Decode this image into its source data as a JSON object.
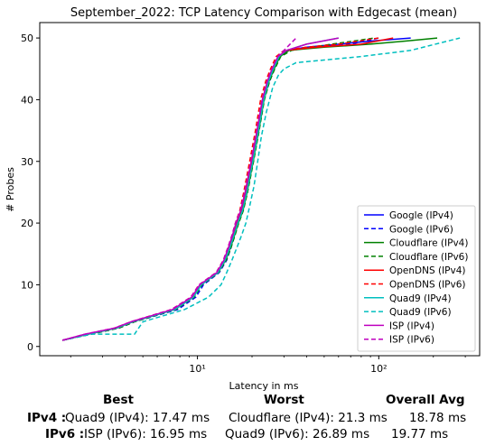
{
  "chart_data": {
    "type": "line",
    "title": "September_2022: TCP Latency Comparison with Edgecast (mean)",
    "xlabel": "Latency in ms",
    "ylabel": "# Probes",
    "xscale": "log",
    "xlim": [
      1.35,
      360
    ],
    "ylim": [
      -1.5,
      52.5
    ],
    "xticks": [
      10,
      100
    ],
    "xtick_labels": [
      "10¹",
      "10²"
    ],
    "yticks": [
      0,
      10,
      20,
      30,
      40,
      50
    ],
    "ytick_labels": [
      "0",
      "10",
      "20",
      "30",
      "40",
      "50"
    ],
    "grid": false,
    "legend_position": "lower right",
    "series": [
      {
        "name": "Google (IPv4)",
        "color": "#0000ff",
        "style": "solid",
        "x": [
          1.8,
          2.5,
          3.6,
          4.4,
          7.5,
          9.5,
          10.5,
          13.0,
          14.2,
          15.0,
          15.8,
          16.5,
          17.5,
          18.5,
          20.0,
          21.5,
          23.0,
          24.5,
          26.0,
          28.0,
          31.0,
          40.0,
          60.0,
          90.0,
          150.0
        ],
        "y": [
          1,
          2,
          3,
          4,
          6,
          8,
          10,
          12,
          14,
          16,
          18,
          20,
          22,
          25,
          30,
          35,
          40,
          43,
          45,
          47,
          48,
          48.5,
          49,
          49.5,
          50
        ]
      },
      {
        "name": "Google (IPv6)",
        "color": "#0000ff",
        "style": "dashed",
        "x": [
          1.8,
          2.6,
          3.7,
          4.5,
          7.8,
          9.8,
          10.8,
          13.2,
          14.5,
          15.3,
          16.0,
          16.8,
          17.8,
          18.8,
          20.2,
          21.8,
          23.3,
          25.0,
          26.5,
          28.5,
          32.0,
          45.0,
          70.0,
          100.0
        ],
        "y": [
          1,
          2,
          3,
          4,
          6,
          8,
          10,
          12,
          14,
          16,
          18,
          20,
          22,
          25,
          30,
          35,
          40,
          43,
          45,
          47,
          48,
          48.5,
          49,
          50
        ]
      },
      {
        "name": "Cloudflare (IPv4)",
        "color": "#008000",
        "style": "solid",
        "x": [
          1.8,
          2.5,
          3.6,
          4.4,
          7.5,
          9.5,
          10.5,
          13.0,
          14.3,
          15.2,
          16.0,
          16.8,
          17.8,
          18.8,
          20.3,
          21.8,
          23.3,
          24.8,
          26.5,
          28.5,
          32.0,
          50.0,
          90.0,
          140.0,
          210.0
        ],
        "y": [
          1,
          2,
          3,
          4,
          6,
          8,
          10,
          12,
          14,
          16,
          18,
          20,
          22,
          25,
          30,
          35,
          40,
          43,
          45,
          47,
          48,
          48.5,
          49,
          49.5,
          50
        ]
      },
      {
        "name": "Cloudflare (IPv6)",
        "color": "#008000",
        "style": "dashed",
        "x": [
          1.8,
          2.6,
          3.7,
          4.5,
          7.6,
          9.6,
          10.6,
          13.1,
          14.4,
          15.3,
          16.1,
          16.9,
          17.9,
          18.9,
          20.4,
          21.9,
          23.4,
          25.0,
          26.7,
          28.8,
          33.0,
          55.0,
          95.0
        ],
        "y": [
          1,
          2,
          3,
          4,
          6,
          8,
          10,
          12,
          14,
          16,
          18,
          20,
          22,
          25,
          30,
          35,
          40,
          43,
          45,
          47,
          48,
          49,
          50
        ]
      },
      {
        "name": "OpenDNS (IPv4)",
        "color": "#ff0000",
        "style": "solid",
        "x": [
          1.8,
          2.5,
          3.6,
          4.4,
          7.4,
          9.4,
          10.4,
          12.9,
          14.1,
          14.9,
          15.7,
          16.4,
          17.4,
          18.4,
          19.9,
          21.4,
          22.9,
          24.4,
          25.9,
          27.9,
          31.0,
          45.0,
          80.0,
          120.0
        ],
        "y": [
          1,
          2,
          3,
          4,
          6,
          8,
          10,
          12,
          14,
          16,
          18,
          20,
          22,
          25,
          30,
          35,
          40,
          43,
          45,
          47,
          48,
          48.5,
          49,
          50
        ]
      },
      {
        "name": "OpenDNS (IPv6)",
        "color": "#ff0000",
        "style": "dashed",
        "x": [
          1.8,
          2.5,
          3.5,
          4.3,
          7.2,
          9.2,
          10.2,
          12.7,
          13.9,
          14.7,
          15.5,
          16.2,
          17.1,
          18.0,
          19.4,
          20.9,
          22.3,
          23.8,
          25.3,
          27.2,
          30.0,
          40.0,
          60.0,
          100.0
        ],
        "y": [
          1,
          2,
          3,
          4,
          6,
          8,
          10,
          12,
          14,
          16,
          18,
          20,
          22,
          25,
          30,
          35,
          40,
          43,
          45,
          47,
          48,
          48.5,
          49,
          50
        ]
      },
      {
        "name": "Quad9 (IPv4)",
        "color": "#00bfbf",
        "style": "solid",
        "x": [
          1.8,
          2.5,
          3.6,
          4.4,
          7.5,
          9.5,
          10.5,
          13.0,
          14.2,
          15.1,
          15.9,
          16.7,
          17.7,
          18.7,
          20.2,
          21.7,
          23.2,
          24.7,
          26.2,
          28.2,
          31.0,
          40.0,
          60.0
        ],
        "y": [
          1,
          2,
          3,
          4,
          6,
          8,
          10,
          12,
          14,
          16,
          18,
          20,
          22,
          25,
          30,
          35,
          40,
          43,
          45,
          47,
          48,
          49,
          50
        ]
      },
      {
        "name": "Quad9 (IPv6)",
        "color": "#00bfbf",
        "style": "dashed",
        "x": [
          1.8,
          2.6,
          4.5,
          5.0,
          8.5,
          11.5,
          13.5,
          14.5,
          15.5,
          16.5,
          17.5,
          18.5,
          19.5,
          20.5,
          21.5,
          22.5,
          24.0,
          26.0,
          28.0,
          30.0,
          35.0,
          80.0,
          150.0,
          280.0
        ],
        "y": [
          1,
          2,
          2,
          4,
          6,
          8,
          10,
          12,
          14,
          16,
          18,
          20,
          23,
          26,
          30,
          34,
          38,
          42,
          44,
          45,
          46,
          47,
          48,
          50
        ]
      },
      {
        "name": "ISP (IPv4)",
        "color": "#bf00bf",
        "style": "solid",
        "x": [
          1.8,
          2.4,
          3.5,
          4.3,
          7.3,
          9.3,
          10.3,
          12.8,
          14.0,
          14.8,
          15.6,
          16.3,
          17.3,
          18.3,
          19.8,
          21.3,
          22.8,
          24.3,
          25.8,
          27.8,
          31.0,
          40.0,
          60.0
        ],
        "y": [
          1,
          2,
          3,
          4,
          6,
          8,
          10,
          12,
          14,
          16,
          18,
          20,
          22,
          25,
          30,
          35,
          40,
          43,
          45,
          47,
          48,
          49,
          50
        ]
      },
      {
        "name": "ISP (IPv6)",
        "color": "#bf00bf",
        "style": "dashed",
        "x": [
          1.8,
          2.4,
          3.5,
          4.3,
          7.2,
          9.2,
          10.2,
          12.7,
          13.9,
          14.7,
          15.5,
          16.2,
          17.2,
          18.2,
          19.7,
          21.2,
          22.7,
          24.2,
          25.7,
          27.7,
          30.0,
          35.0
        ],
        "y": [
          1,
          2,
          3,
          4,
          6,
          8,
          10,
          12,
          14,
          16,
          18,
          20,
          22,
          25,
          30,
          35,
          40,
          43,
          45,
          47,
          48,
          50
        ]
      }
    ]
  },
  "summary": {
    "headers": {
      "best": "Best",
      "worst": "Worst",
      "avg": "Overall Avg"
    },
    "rows": [
      {
        "label": "IPv4 :",
        "best": "Quad9 (IPv4): 17.47 ms",
        "worst": "Cloudflare (IPv4): 21.3 ms",
        "avg": "18.78 ms"
      },
      {
        "label": "IPv6 :",
        "best": "ISP (IPv6): 16.95 ms",
        "worst": "Quad9 (IPv6): 26.89 ms",
        "avg": "19.77 ms"
      }
    ]
  }
}
